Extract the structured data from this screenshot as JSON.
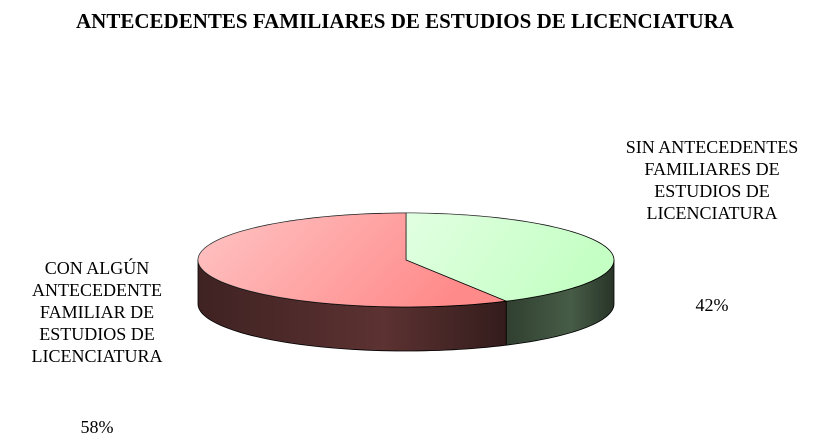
{
  "chart_data": {
    "type": "pie",
    "title": "ANTECEDENTES FAMILIARES DE ESTUDIOS DE LICENCIATURA",
    "categories": [
      "SIN ANTECEDENTES FAMILIARES DE ESTUDIOS DE LICENCIATURA",
      "CON ALGÚN ANTECEDENTE FAMILIAR DE ESTUDIOS DE LICENCIATURA"
    ],
    "values": [
      42,
      58
    ],
    "value_labels": [
      "42%",
      "58%"
    ],
    "colors": [
      "#c4ffc4",
      "#ff8a8a"
    ]
  }
}
